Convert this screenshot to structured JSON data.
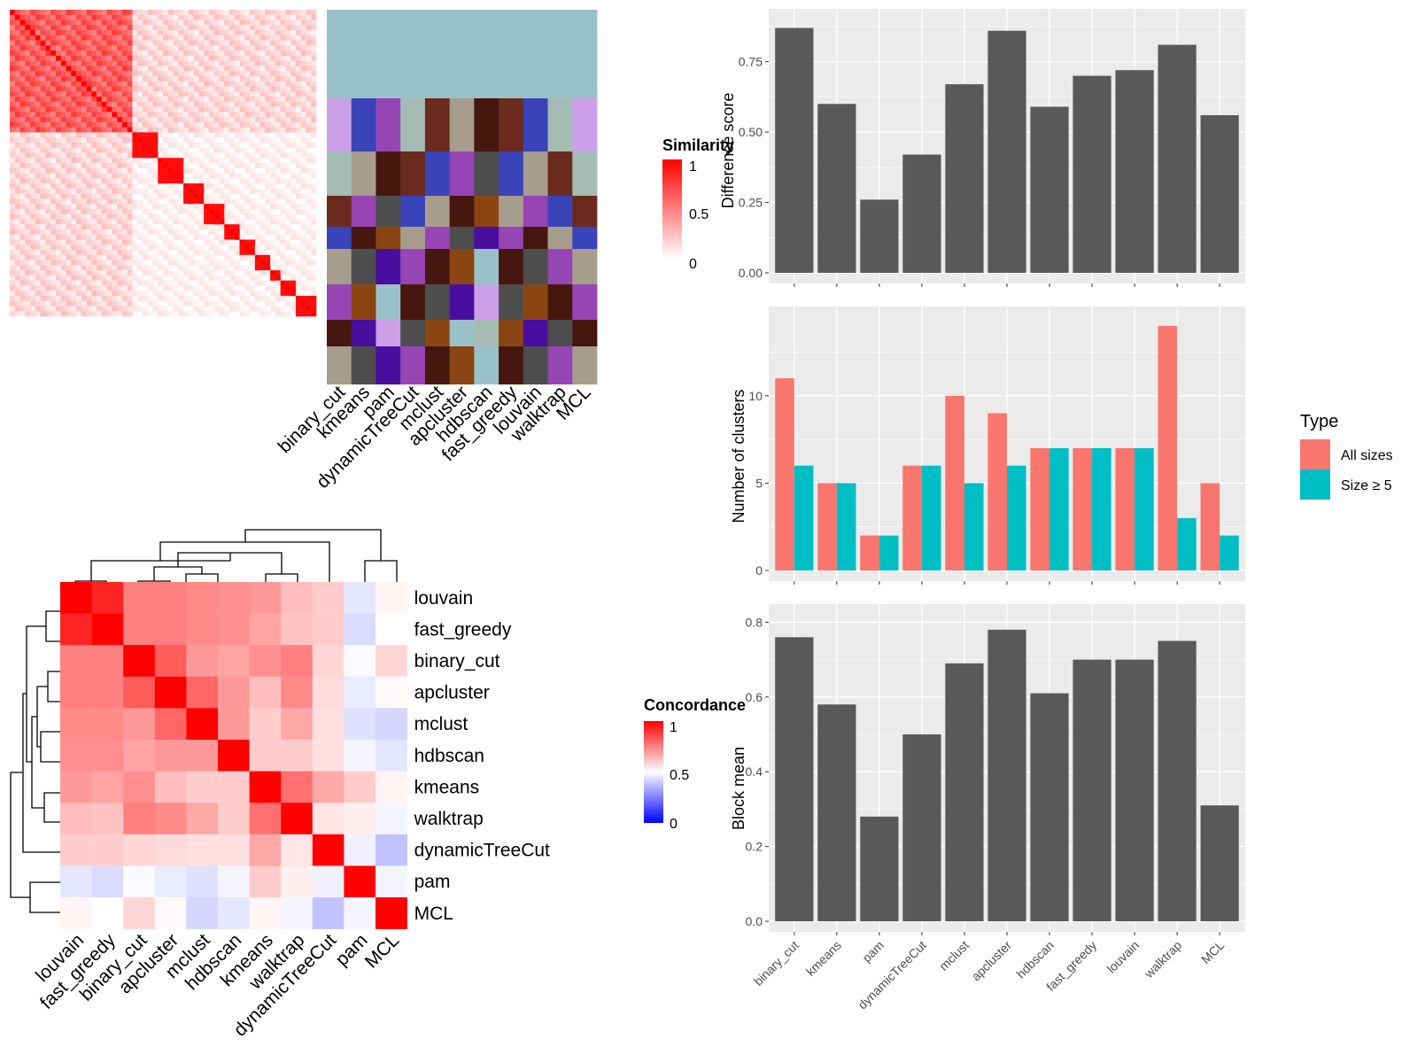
{
  "colors": {
    "panel_bg": "#ebebeb",
    "gridline": "#ffffff",
    "bar_fill": "#595959",
    "all_sizes": "#f8766d",
    "size_ge5": "#00bfc4",
    "sim_high": "#ff0000",
    "sim_low": "#ffffff",
    "conc_low": "#0000ff"
  },
  "chart_data": [
    {
      "id": "similarity_heatmap",
      "type": "heatmap",
      "legend_title": "Similarity",
      "legend_ticks": [
        "1",
        "0.5",
        "0"
      ],
      "scale": [
        0,
        1
      ],
      "n_cells": 60,
      "blocks": [
        {
          "start": 0,
          "size": 24,
          "value": 0.78
        },
        {
          "start": 24,
          "size": 5,
          "value": 0.95
        },
        {
          "start": 29,
          "size": 5,
          "value": 0.95
        },
        {
          "start": 34,
          "size": 4,
          "value": 0.95
        },
        {
          "start": 38,
          "size": 4,
          "value": 0.95
        },
        {
          "start": 42,
          "size": 3,
          "value": 0.95
        },
        {
          "start": 45,
          "size": 3,
          "value": 0.95
        },
        {
          "start": 48,
          "size": 3,
          "value": 0.95
        },
        {
          "start": 51,
          "size": 2,
          "value": 0.95
        },
        {
          "start": 53,
          "size": 3,
          "value": 0.95
        },
        {
          "start": 56,
          "size": 4,
          "value": 0.95
        }
      ],
      "methods": [
        "binary_cut",
        "kmeans",
        "pam",
        "dynamicTreeCut",
        "mclust",
        "apcluster",
        "hdbscan",
        "fast_greedy",
        "louvain",
        "walktrap",
        "MCL"
      ]
    },
    {
      "id": "concordance_heatmap",
      "type": "heatmap",
      "legend_title": "Concordance",
      "legend_ticks": [
        "1",
        "0.5",
        "0"
      ],
      "scale": [
        0,
        1
      ],
      "rows": [
        "louvain",
        "fast_greedy",
        "binary_cut",
        "apcluster",
        "mclust",
        "hdbscan",
        "kmeans",
        "walktrap",
        "dynamicTreeCut",
        "pam",
        "MCL"
      ],
      "columns": [
        "louvain",
        "fast_greedy",
        "binary_cut",
        "apcluster",
        "mclust",
        "hdbscan",
        "kmeans",
        "walktrap",
        "dynamicTreeCut",
        "pam",
        "MCL"
      ],
      "values": [
        [
          1.0,
          0.93,
          0.75,
          0.75,
          0.73,
          0.72,
          0.7,
          0.63,
          0.6,
          0.45,
          0.52
        ],
        [
          0.93,
          1.0,
          0.75,
          0.75,
          0.73,
          0.72,
          0.68,
          0.62,
          0.6,
          0.43,
          0.5
        ],
        [
          0.75,
          0.75,
          1.0,
          0.82,
          0.7,
          0.68,
          0.72,
          0.75,
          0.58,
          0.49,
          0.58
        ],
        [
          0.75,
          0.75,
          0.82,
          1.0,
          0.8,
          0.7,
          0.63,
          0.73,
          0.57,
          0.46,
          0.51
        ],
        [
          0.73,
          0.73,
          0.7,
          0.8,
          1.0,
          0.7,
          0.6,
          0.67,
          0.56,
          0.44,
          0.42
        ],
        [
          0.72,
          0.72,
          0.68,
          0.7,
          0.7,
          1.0,
          0.6,
          0.6,
          0.56,
          0.48,
          0.45
        ],
        [
          0.7,
          0.68,
          0.72,
          0.63,
          0.6,
          0.6,
          1.0,
          0.78,
          0.67,
          0.6,
          0.52
        ],
        [
          0.63,
          0.62,
          0.75,
          0.73,
          0.67,
          0.6,
          0.78,
          1.0,
          0.55,
          0.53,
          0.48
        ],
        [
          0.6,
          0.6,
          0.58,
          0.57,
          0.56,
          0.56,
          0.67,
          0.55,
          1.0,
          0.47,
          0.38
        ],
        [
          0.45,
          0.43,
          0.49,
          0.46,
          0.44,
          0.48,
          0.6,
          0.53,
          0.47,
          1.0,
          0.48
        ],
        [
          0.52,
          0.5,
          0.58,
          0.51,
          0.42,
          0.45,
          0.52,
          0.48,
          0.38,
          0.48,
          1.0
        ]
      ]
    },
    {
      "id": "difference_score",
      "type": "bar",
      "categories": [
        "binary_cut",
        "kmeans",
        "pam",
        "dynamicTreeCut",
        "mclust",
        "apcluster",
        "hdbscan",
        "fast_greedy",
        "louvain",
        "walktrap",
        "MCL"
      ],
      "values": [
        0.87,
        0.6,
        0.26,
        0.42,
        0.67,
        0.86,
        0.59,
        0.7,
        0.72,
        0.81,
        0.56
      ],
      "ylabel": "Difference score",
      "ylim": [
        0,
        0.9
      ],
      "yticks": [
        "0.00",
        "0.25",
        "0.50",
        "0.75"
      ]
    },
    {
      "id": "number_of_clusters",
      "type": "bar",
      "categories": [
        "binary_cut",
        "kmeans",
        "pam",
        "dynamicTreeCut",
        "mclust",
        "apcluster",
        "hdbscan",
        "fast_greedy",
        "louvain",
        "walktrap",
        "MCL"
      ],
      "series": [
        {
          "name": "All sizes",
          "values": [
            11,
            5,
            2,
            6,
            10,
            9,
            7,
            7,
            7,
            14,
            5
          ]
        },
        {
          "name": "Size ≥ 5",
          "values": [
            6,
            5,
            2,
            6,
            5,
            6,
            7,
            7,
            7,
            3,
            2
          ]
        }
      ],
      "ylabel": "Number of clusters",
      "ylim": [
        0,
        14.5
      ],
      "yticks": [
        "0",
        "5",
        "10"
      ],
      "legend_title": "Type",
      "legend_position": "right"
    },
    {
      "id": "block_mean",
      "type": "bar",
      "categories": [
        "binary_cut",
        "kmeans",
        "pam",
        "dynamicTreeCut",
        "mclust",
        "apcluster",
        "hdbscan",
        "fast_greedy",
        "louvain",
        "walktrap",
        "MCL"
      ],
      "values": [
        0.76,
        0.58,
        0.28,
        0.5,
        0.69,
        0.78,
        0.61,
        0.7,
        0.7,
        0.75,
        0.31
      ],
      "ylabel": "Block mean",
      "ylim": [
        0,
        0.82
      ],
      "yticks": [
        "0.0",
        "0.2",
        "0.4",
        "0.6",
        "0.8"
      ]
    }
  ]
}
